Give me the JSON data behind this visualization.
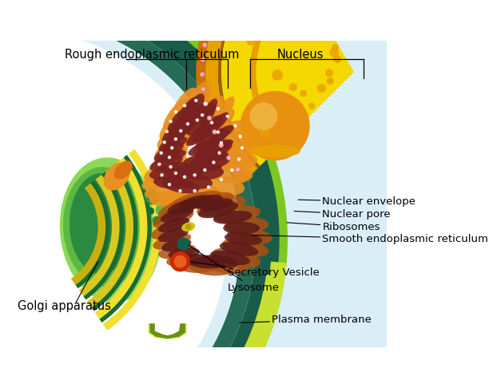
{
  "background_color": "#ffffff",
  "labels": {
    "rough_er": "Rough endoplasmic reticulum",
    "nucleus": "Nucleus",
    "nuclear_envelope": "Nuclear envelope",
    "nuclear_pore": "Nuclear pore",
    "ribosomes": "Ribosomes",
    "smooth_er": "Smooth endoplasmic reticulum",
    "secretory_vesicle": "Secretory Vesicle",
    "lysosome": "Lysosome",
    "plasma_membrane": "Plasma membrane",
    "golgi": "Golgi apparatus"
  },
  "colors": {
    "cell_bg": "#daeef8",
    "outer_dark": "#1a5c4a",
    "outer_mid": "#266b55",
    "outer_green_rim": "#7dc820",
    "outer_green_rim2": "#5a9a10",
    "golgi_yellow_bright": "#f0e030",
    "golgi_yellow": "#d8c820",
    "golgi_green_dark": "#1a6b30",
    "golgi_green_mid": "#2a8a40",
    "golgi_green_light": "#5cb840",
    "golgi_green_pale": "#8cd858",
    "nucleus_yellow": "#f5d800",
    "nucleus_amber": "#e8a000",
    "nucleus_orange_border": "#d07000",
    "nucleus_dark_line": "#a06000",
    "nucleolus_orange": "#e89010",
    "nucleolus_hi": "#f0c050",
    "rough_er_dark": "#7a2020",
    "rough_er_mid": "#8b3030",
    "rough_er_orange": "#d87010",
    "rough_er_orange2": "#e89020",
    "smooth_er_dark": "#5a1818",
    "smooth_er_orange": "#b05010",
    "ribosome_white": "#ffffff",
    "ribosome_pink": "#ffb0c0",
    "secretory_red": "#cc2800",
    "secretory_orange": "#e86020",
    "lysosome_teal": "#106050",
    "vesicle_yellow": "#d8c010",
    "vesicle_green": "#a8c820",
    "plasma_lime": "#a8d020",
    "plasma_lime2": "#c8e030",
    "plasma_dark": "#6a9010"
  },
  "font_size": 9.5,
  "font_size_lg": 10.5
}
